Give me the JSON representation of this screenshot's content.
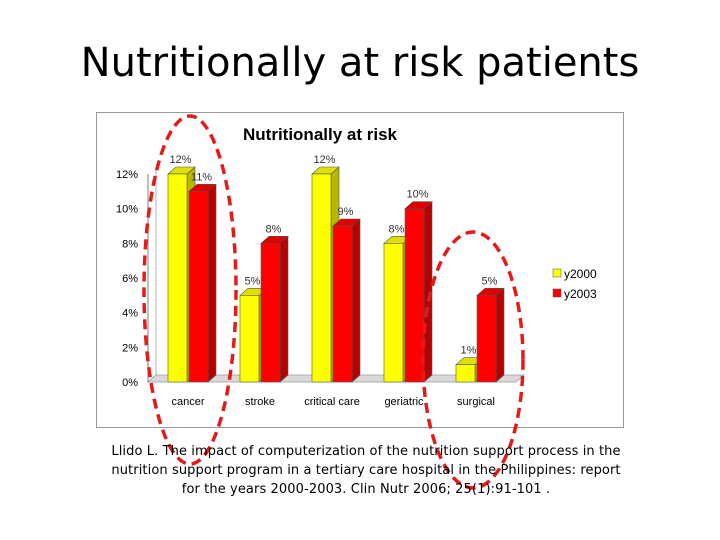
{
  "slide": {
    "title": "Nutritionally at risk patients",
    "citation": "Llido L. The impact of computerization of the nutrition support process in the nutrition support program in a tertiary care hospital in the Philippines: report for the years 2000-2003. Clin Nutr 2006; 25(1):91-101 ."
  },
  "chart_data": {
    "type": "bar",
    "title": "Nutritionally at risk",
    "categories": [
      "cancer",
      "stroke",
      "critical care",
      "geriatric",
      "surgical"
    ],
    "series": [
      {
        "name": "y2000",
        "values": [
          12,
          5,
          12,
          8,
          1
        ],
        "labels": [
          "12%",
          "5%",
          "12%",
          "8%",
          "1%"
        ],
        "color": "#ffff00"
      },
      {
        "name": "y2003",
        "values": [
          11,
          8,
          9,
          10,
          5
        ],
        "labels": [
          "11%",
          "8%",
          "9%",
          "10%",
          "5%"
        ],
        "color": "#ff0000"
      }
    ],
    "yticks": [
      "0%",
      "2%",
      "4%",
      "6%",
      "8%",
      "10%",
      "12%"
    ],
    "ylim": [
      0,
      12
    ],
    "legend_position": "right",
    "grid": false,
    "style": "3d-bars",
    "annotations": "red dashed ellipses highlight the cancer and surgical groups",
    "highlight_color": "#e31b1b"
  }
}
